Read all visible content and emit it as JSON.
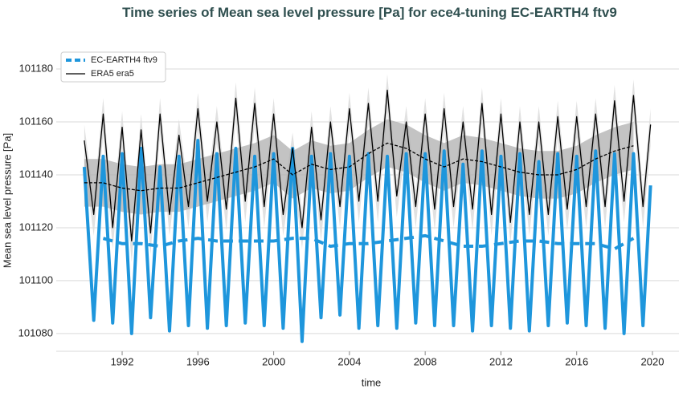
{
  "chart_data": {
    "type": "line",
    "title": "Time series of Mean sea level pressure [Pa] for ece4-tuning EC-EARTH4 ftv9",
    "x_label": "time",
    "y_label": "Mean sea level pressure [Pa]",
    "xlim": [
      1988.52,
      2021.4
    ],
    "xticks": [
      1992,
      1996,
      2000,
      2004,
      2008,
      2012,
      2016,
      2020
    ],
    "ylim": [
      101073.3,
      101187.9
    ],
    "yticks": [
      101080,
      101100,
      101120,
      101140,
      101160,
      101180
    ],
    "grid": true,
    "legend": "upper left",
    "x": [
      1990,
      1990.5,
      1991,
      1991.5,
      1992,
      1992.5,
      1993,
      1993.5,
      1994,
      1994.5,
      1995,
      1995.5,
      1996,
      1996.5,
      1997,
      1997.5,
      1998,
      1998.5,
      1999,
      1999.5,
      2000,
      2000.5,
      2001,
      2001.5,
      2002,
      2002.5,
      2003,
      2003.5,
      2004,
      2004.5,
      2005,
      2005.5,
      2006,
      2006.5,
      2007,
      2007.5,
      2008,
      2008.5,
      2009,
      2009.5,
      2010,
      2010.5,
      2011,
      2011.5,
      2012,
      2012.5,
      2013,
      2013.5,
      2014,
      2014.5,
      2015,
      2015.5,
      2016,
      2016.5,
      2017,
      2017.5,
      2018,
      2018.5,
      2019,
      2019.5,
      2019.9
    ],
    "mean_x": [
      1990,
      1991,
      1992,
      1993,
      1994,
      1995,
      1996,
      1997,
      1998,
      1999,
      2000,
      2001,
      2002,
      2003,
      2004,
      2005,
      2006,
      2007,
      2008,
      2009,
      2010,
      2011,
      2012,
      2013,
      2014,
      2015,
      2016,
      2017,
      2018,
      2019
    ],
    "band": {
      "color": "#dcdcdc",
      "upper": [
        101159,
        101131,
        101169,
        101126,
        101164,
        101121,
        101163,
        101124,
        101169,
        101131,
        101161,
        101134,
        101171,
        101136,
        101166,
        101133,
        101175,
        101136,
        101173,
        101134,
        101169,
        101131,
        101156,
        101126,
        101164,
        101129,
        101166,
        101134,
        101171,
        101136,
        101173,
        101136,
        101178,
        101138,
        101166,
        101134,
        101169,
        101133,
        101171,
        101134,
        101166,
        101133,
        101173,
        101131,
        101169,
        101128,
        101166,
        101131,
        101166,
        101131,
        101168,
        101133,
        101168,
        101134,
        101169,
        101134,
        101174,
        101136,
        101176,
        101134,
        101165
      ],
      "lower": [
        101145,
        101117,
        101155,
        101112,
        101150,
        101107,
        101149,
        101110,
        101155,
        101117,
        101147,
        101120,
        101157,
        101122,
        101152,
        101119,
        101161,
        101122,
        101159,
        101120,
        101155,
        101117,
        101142,
        101112,
        101150,
        101115,
        101152,
        101120,
        101157,
        101122,
        101159,
        101122,
        101164,
        101124,
        101152,
        101120,
        101155,
        101119,
        101157,
        101120,
        101152,
        101119,
        101159,
        101117,
        101155,
        101114,
        101152,
        101117,
        101152,
        101117,
        101154,
        101119,
        101154,
        101120,
        101155,
        101120,
        101160,
        101122,
        101162,
        101120,
        101151
      ]
    },
    "mean_band": {
      "color": "#a9a9a9",
      "upper": [
        101146,
        101146,
        101144,
        101143,
        101144,
        101144,
        101146,
        101148,
        101150,
        101152,
        101155,
        101149,
        101153,
        101151,
        101152,
        101157,
        101161,
        101159,
        101155,
        101152,
        101155,
        101154,
        101152,
        101150,
        101149,
        101149,
        101151,
        101155,
        101158,
        101160
      ],
      "lower": [
        101128,
        101128,
        101126,
        101125,
        101126,
        101126,
        101128,
        101130,
        101132,
        101134,
        101137,
        101131,
        101135,
        101133,
        101134,
        101139,
        101143,
        101141,
        101137,
        101134,
        101137,
        101136,
        101134,
        101132,
        101131,
        101131,
        101133,
        101137,
        101140,
        101142
      ]
    },
    "series": [
      {
        "name": "EC-EARTH4 ftv9",
        "color": "#1e96dc",
        "legend_dashed": true,
        "values": [
          101143,
          101085,
          101147,
          101084,
          101148,
          101080,
          101150,
          101086,
          101143,
          101081,
          101147,
          101083,
          101153,
          101082,
          101148,
          101083,
          101150,
          101084,
          101147,
          101083,
          101148,
          101082,
          101150,
          101077,
          101147,
          101086,
          101148,
          101087,
          101147,
          101082,
          101148,
          101083,
          101147,
          101082,
          101148,
          101084,
          101148,
          101083,
          101149,
          101083,
          101144,
          101081,
          101149,
          101083,
          101147,
          101082,
          101148,
          101081,
          101145,
          101083,
          101148,
          101084,
          101147,
          101083,
          101149,
          101082,
          101148,
          101080,
          101148,
          101083,
          101136
        ],
        "mean": [
          null,
          101116,
          101114,
          101114,
          101113,
          101115,
          101116,
          101115,
          101115,
          101115,
          101115,
          101116,
          101116,
          101113,
          101114,
          101114,
          101115,
          101116,
          101117,
          101115,
          101113,
          101113,
          101114,
          101115,
          101115,
          101114,
          101114,
          101114,
          101112,
          101116
        ]
      },
      {
        "name": "ERA5 era5",
        "color": "#000000",
        "legend_dashed": false,
        "values": [
          101153,
          101125,
          101163,
          101120,
          101158,
          101115,
          101157,
          101118,
          101163,
          101125,
          101155,
          101128,
          101165,
          101130,
          101160,
          101127,
          101169,
          101130,
          101167,
          101128,
          101163,
          101125,
          101150,
          101120,
          101158,
          101123,
          101160,
          101128,
          101165,
          101130,
          101167,
          101130,
          101172,
          101132,
          101160,
          101128,
          101163,
          101127,
          101165,
          101128,
          101160,
          101127,
          101167,
          101125,
          101163,
          101122,
          101160,
          101125,
          101160,
          101125,
          101162,
          101127,
          101162,
          101128,
          101163,
          101128,
          101168,
          101130,
          101170,
          101128,
          101159
        ],
        "mean": [
          101137,
          101137,
          101135,
          101134,
          101135,
          101135,
          101137,
          101139,
          101141,
          101143,
          101146,
          101140,
          101144,
          101142,
          101143,
          101148,
          101152,
          101150,
          101146,
          101143,
          101146,
          101145,
          101143,
          101141,
          101140,
          101140,
          101142,
          101146,
          101149,
          101151
        ]
      }
    ]
  }
}
